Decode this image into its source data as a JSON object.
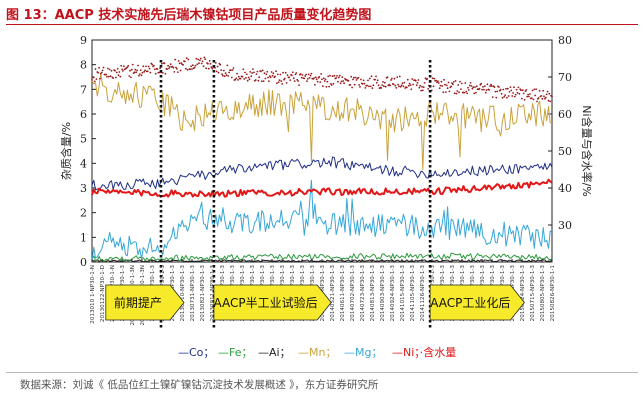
{
  "figure": {
    "title": "图 13：AACP 技术实施先后瑞木镍钴项目产品质量变化趋势图",
    "source": "数据来源：刘诚《 低品位红土镍矿镍钴沉淀技术发展概述 》，东方证券研究所"
  },
  "colors": {
    "title_red": "#c0121a",
    "Co": "#1f2f86",
    "Fe": "#2d9a3f",
    "Al": "#1f1f1f",
    "Mn": "#c9a23a",
    "Mg": "#36a7d8",
    "Ni": "#e21717",
    "water": "#9a1b1b",
    "phase_fill": "#f6ea2a",
    "divider": "#111111"
  },
  "chart_data": {
    "type": "line",
    "ylabel": "杂质含量/%",
    "y2label": "Ni含量与含水率/%",
    "ylim": [
      0,
      9
    ],
    "yticks": [
      0,
      1,
      2,
      3,
      4,
      5,
      6,
      7,
      8,
      9
    ],
    "y2lim": [
      20,
      80
    ],
    "y2ticks": [
      30,
      40,
      50,
      60,
      70,
      80
    ],
    "x_tick_labels": [
      "2013010 1-NP30-1-N",
      "20130122-NP30-1-D",
      "20130213-NP30-1-N",
      "20130305-NP30-1-3",
      "20130326-NP30-1-3N",
      "20130416-NP30-1-3N",
      "20130507-NP30-1-3",
      "20130528-NP30-1-3",
      "20130619-NP30-1-3",
      "20130710-NP30-1-3",
      "20130731-NP30-1-3",
      "20130821-NP30-1-3",
      "20130911-NP30-1-3",
      "20131002-NP30-1-3",
      "20131023-NP30-1-3",
      "20131113-NP30-1-3",
      "20131204-NP30-1-3",
      "20131225-NP30-1-3",
      "20140115-NP30-1-3",
      "20140205-NP30-1-3",
      "20140226-NP30-1-3",
      "20140319-NP30-1-3",
      "20140409-NP30-1-3",
      "20140430-NP30-1-3",
      "20140521-NP30-1-3",
      "20140611-NP30-1-3",
      "20140702-NP30-1-3",
      "20140723-NP30-1-3",
      "20140813-NP30-1-3",
      "20140903-NP30-1-3",
      "20140924-NP30-1-3",
      "20141015-NP30-1-3",
      "20141105-NP30-1-3",
      "20141126-NP30-1-3",
      "20141217-NP30-1-3",
      "20150107-NP30-1-3",
      "20150128-NP30-1-3",
      "20150218-NP30-1-3",
      "20150311-NP30-1-3",
      "20150401-NP30-1-3",
      "20150422-NP30-1-3",
      "20150513-NP30-1-3",
      "20150603-NP30-1-3",
      "20150624-NP30-1-3",
      "20150715-NP30-1-3",
      "20150805-NP30-1-3",
      "20150826-NP30-1-1"
    ],
    "phase_dividers": [
      0.15,
      0.265,
      0.735
    ],
    "phases": [
      {
        "label": "前期提产",
        "start": 0.03,
        "end": 0.2
      },
      {
        "label": "AACP半工业试验后",
        "start": 0.265,
        "end": 0.52
      },
      {
        "label": "AACP工业化后",
        "start": 0.735,
        "end": 0.94
      }
    ],
    "series": [
      {
        "name": "Co",
        "axis": "left",
        "style": "line",
        "segments": [
          [
            0,
            3.1
          ],
          [
            0.15,
            3.2
          ],
          [
            0.265,
            3.6
          ],
          [
            0.38,
            3.9
          ],
          [
            0.52,
            4.05
          ],
          [
            0.62,
            3.75
          ],
          [
            0.735,
            3.6
          ],
          [
            0.85,
            3.7
          ],
          [
            1.0,
            3.9
          ]
        ],
        "noise": 0.22
      },
      {
        "name": "Fe",
        "axis": "left",
        "style": "line",
        "segments": [
          [
            0,
            0.15
          ],
          [
            0.4,
            0.2
          ],
          [
            0.7,
            0.25
          ],
          [
            1.0,
            0.2
          ]
        ],
        "noise": 0.12
      },
      {
        "name": "Al",
        "axis": "left",
        "style": "line",
        "segments": [
          [
            0,
            0.05
          ],
          [
            1.0,
            0.05
          ]
        ],
        "noise": 0.04
      },
      {
        "name": "Mn",
        "axis": "left",
        "style": "line",
        "segments": [
          [
            0,
            7.2
          ],
          [
            0.15,
            6.6
          ],
          [
            0.2,
            5.7
          ],
          [
            0.265,
            6.0
          ],
          [
            0.4,
            6.5
          ],
          [
            0.55,
            6.2
          ],
          [
            0.65,
            5.8
          ],
          [
            0.735,
            6.0
          ],
          [
            0.85,
            5.8
          ],
          [
            1.0,
            6.0
          ]
        ],
        "noise": 0.55
      },
      {
        "name": "Mg",
        "axis": "left",
        "style": "line",
        "segments": [
          [
            0,
            0.5
          ],
          [
            0.15,
            0.6
          ],
          [
            0.2,
            1.6
          ],
          [
            0.265,
            1.7
          ],
          [
            0.4,
            1.6
          ],
          [
            0.6,
            1.5
          ],
          [
            0.735,
            1.4
          ],
          [
            0.85,
            1.2
          ],
          [
            1.0,
            1.0
          ]
        ],
        "noise": 0.5
      },
      {
        "name": "Ni",
        "axis": "right",
        "style": "line",
        "segments": [
          [
            0,
            39.0
          ],
          [
            0.15,
            38.5
          ],
          [
            0.265,
            38.5
          ],
          [
            0.52,
            39.0
          ],
          [
            0.735,
            39.0
          ],
          [
            0.85,
            40.0
          ],
          [
            1.0,
            41.5
          ]
        ],
        "noise": 0.9
      },
      {
        "name": "含水量",
        "axis": "right",
        "style": "dots",
        "segments": [
          [
            0,
            70.5
          ],
          [
            0.15,
            72.5
          ],
          [
            0.25,
            74.0
          ],
          [
            0.3,
            71.0
          ],
          [
            0.5,
            69.0
          ],
          [
            0.65,
            68.5
          ],
          [
            0.735,
            68.0
          ],
          [
            0.85,
            66.5
          ],
          [
            1.0,
            64.5
          ]
        ],
        "noise": 1.8
      }
    ],
    "legend": {
      "position": "bottom",
      "items": [
        {
          "key": "Co",
          "label": "—Co；"
        },
        {
          "key": "Fe",
          "label": "—Fe；"
        },
        {
          "key": "Al",
          "label": "—Ai；"
        },
        {
          "key": "Mn",
          "label": "—Mn；"
        },
        {
          "key": "Mg",
          "label": "—Mg；"
        },
        {
          "key": "Ni",
          "label": "—Ni；·含水量"
        }
      ]
    }
  }
}
